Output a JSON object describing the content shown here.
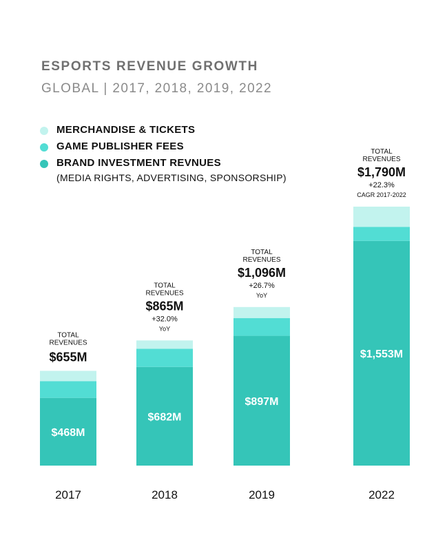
{
  "chart_data": {
    "type": "bar",
    "stacked": true,
    "title": "ESPORTS REVENUE GROWTH",
    "subtitle": "GLOBAL | 2017, 2018, 2019, 2022",
    "categories": [
      "2017",
      "2018",
      "2019",
      "2022"
    ],
    "series": [
      {
        "name": "BRAND INVESTMENT REVNUES",
        "note": "(MEDIA RIGHTS, ADVERTISING, SPONSORSHIP)",
        "color": "#35C5B8",
        "values": [
          468,
          682,
          897,
          1553
        ]
      },
      {
        "name": "GAME PUBLISHER FEES",
        "color": "#52DDD4",
        "values": [
          116,
          125,
          123,
          97
        ]
      },
      {
        "name": "MERCHANDISE & TICKETS",
        "color": "#C2F3EE",
        "values": [
          71,
          58,
          76,
          140
        ]
      }
    ],
    "segment_labels": [
      "$468M",
      "$682M",
      "$897M",
      "$1,553M"
    ],
    "totals": [
      {
        "caption": [
          "TOTAL",
          "REVENUES"
        ],
        "value_label": "$655M",
        "growth": "",
        "growth_note": ""
      },
      {
        "caption": [
          "TOTAL",
          "REVENUES"
        ],
        "value_label": "$865M",
        "growth": "+32.0%",
        "growth_note": "YoY"
      },
      {
        "caption": [
          "TOTAL",
          "REVENUES"
        ],
        "value_label": "$1,096M",
        "growth": "+26.7%",
        "growth_note": "YoY"
      },
      {
        "caption": [
          "TOTAL",
          "REVENUES"
        ],
        "value_label": "$1,790M",
        "growth": "+22.3%",
        "growth_note": "CAGR 2017-2022"
      }
    ],
    "ylim": [
      0,
      1790
    ],
    "grid": false,
    "legend_position": "top-left"
  }
}
